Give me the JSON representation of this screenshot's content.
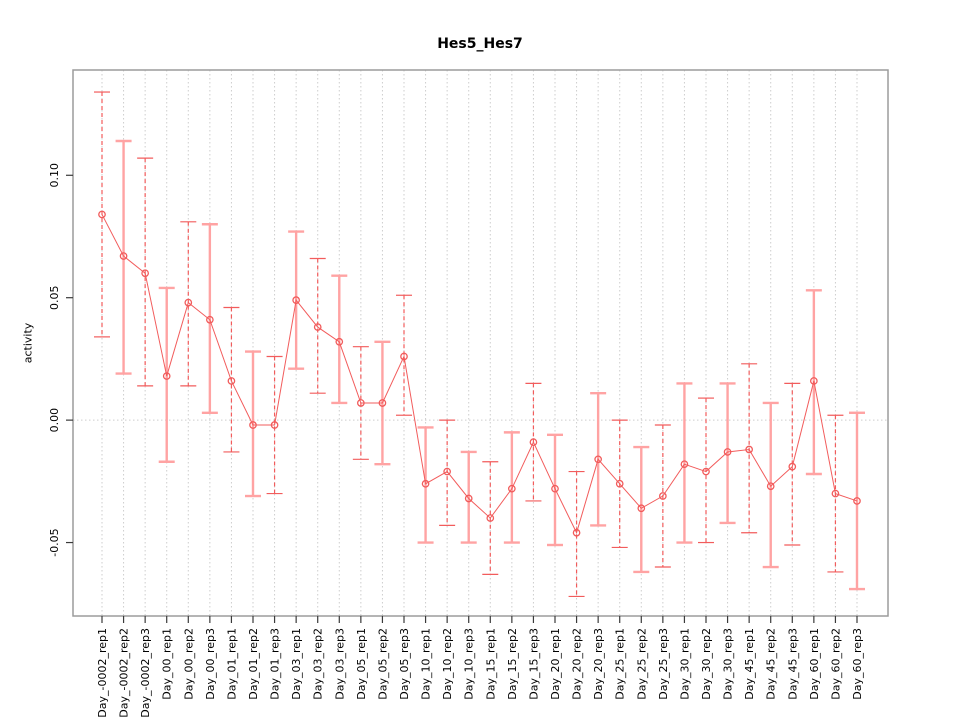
{
  "chart_data": {
    "type": "scatter",
    "title": "Hes5_Hes7",
    "ylabel": "activity",
    "xlabel": "",
    "legend": "none",
    "grid": "vertical-dotted-at-each-category-plus-dotted-zero-line",
    "categories": [
      "Day_-0002_rep1",
      "Day_-0002_rep2",
      "Day_-0002_rep3",
      "Day_00_rep1",
      "Day_00_rep2",
      "Day_00_rep3",
      "Day_01_rep1",
      "Day_01_rep2",
      "Day_01_rep3",
      "Day_03_rep1",
      "Day_03_rep2",
      "Day_03_rep3",
      "Day_05_rep1",
      "Day_05_rep2",
      "Day_05_rep3",
      "Day_10_rep1",
      "Day_10_rep2",
      "Day_10_rep3",
      "Day_15_rep1",
      "Day_15_rep2",
      "Day_15_rep3",
      "Day_20_rep1",
      "Day_20_rep2",
      "Day_20_rep3",
      "Day_25_rep1",
      "Day_25_rep2",
      "Day_25_rep3",
      "Day_30_rep1",
      "Day_30_rep2",
      "Day_30_rep3",
      "Day_45_rep1",
      "Day_45_rep2",
      "Day_45_rep3",
      "Day_60_rep1",
      "Day_60_rep2",
      "Day_60_rep3"
    ],
    "series": [
      {
        "name": "activity",
        "values": [
          0.084,
          0.067,
          0.06,
          0.018,
          0.048,
          0.041,
          0.016,
          -0.002,
          -0.002,
          0.049,
          0.038,
          0.032,
          0.007,
          0.007,
          0.026,
          -0.026,
          -0.021,
          -0.032,
          -0.04,
          -0.028,
          -0.009,
          -0.028,
          -0.046,
          -0.016,
          -0.026,
          -0.036,
          -0.031,
          -0.018,
          -0.021,
          -0.013,
          -0.012,
          -0.027,
          -0.019,
          0.016,
          -0.03,
          -0.033
        ],
        "lower": [
          0.034,
          0.019,
          0.014,
          -0.017,
          0.014,
          0.003,
          -0.013,
          -0.031,
          -0.03,
          0.021,
          0.011,
          0.007,
          -0.016,
          -0.018,
          0.002,
          -0.05,
          -0.043,
          -0.05,
          -0.063,
          -0.05,
          -0.033,
          -0.051,
          -0.072,
          -0.043,
          -0.052,
          -0.062,
          -0.06,
          -0.05,
          -0.05,
          -0.042,
          -0.046,
          -0.06,
          -0.051,
          -0.022,
          -0.062,
          -0.069
        ],
        "upper": [
          0.134,
          0.114,
          0.107,
          0.054,
          0.081,
          0.08,
          0.046,
          0.028,
          0.026,
          0.077,
          0.066,
          0.059,
          0.03,
          0.032,
          0.051,
          -0.003,
          0.0,
          -0.013,
          -0.017,
          -0.005,
          0.015,
          -0.006,
          -0.021,
          0.011,
          0.0,
          -0.011,
          -0.002,
          0.015,
          0.009,
          0.015,
          0.023,
          0.007,
          0.015,
          0.053,
          0.002,
          0.003
        ]
      }
    ],
    "yticks": [
      {
        "value": -0.05,
        "label": "-0.05"
      },
      {
        "value": 0.0,
        "label": "0.00"
      },
      {
        "value": 0.05,
        "label": "0.05"
      },
      {
        "value": 0.1,
        "label": "0.10"
      }
    ],
    "ylim": [
      -0.08,
      0.143
    ],
    "zero_reference_line": true,
    "colors": {
      "point": "#f15b5b",
      "line": "#f25c5c",
      "bar_dark": "#f25c5c",
      "bar_light": "#ffa3a3",
      "grid": "#cdcdcd",
      "box": "#9c9c9c",
      "tick": "#3a3a3a",
      "text": "#000000"
    }
  }
}
